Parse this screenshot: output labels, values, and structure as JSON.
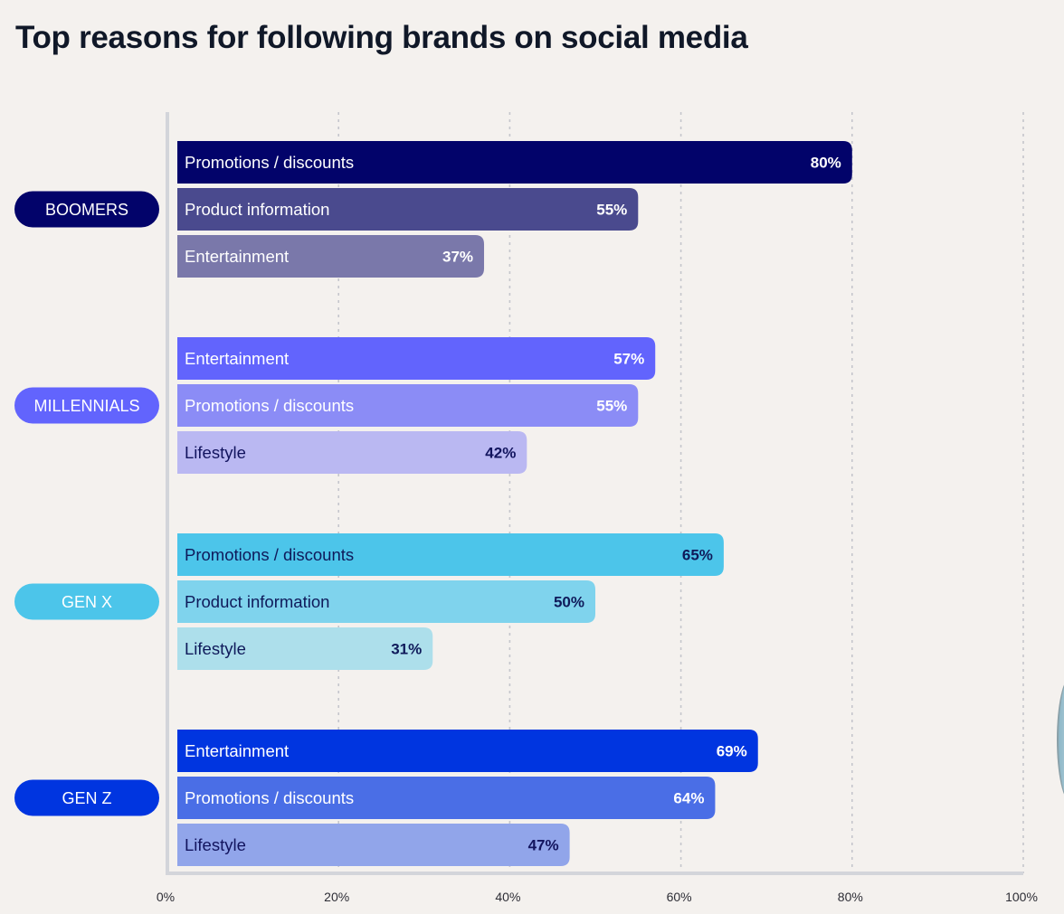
{
  "chart_data": {
    "type": "bar",
    "orientation": "horizontal",
    "title": "Top reasons for following brands on social media",
    "xlabel": "",
    "ylabel": "",
    "xlim": [
      0,
      100
    ],
    "x_ticks": [
      "0%",
      "20%",
      "40%",
      "60%",
      "80%",
      "100%"
    ],
    "grid": true,
    "value_suffix": "%",
    "groups": [
      {
        "name": "BOOMERS",
        "color": "#02036a",
        "bars": [
          {
            "label": "Promotions / discounts",
            "value": 80,
            "color": "#02036a",
            "text_color": "#ffffff"
          },
          {
            "label": "Product information",
            "value": 55,
            "color": "#4a4a8e",
            "text_color": "#ffffff"
          },
          {
            "label": "Entertainment",
            "value": 37,
            "color": "#7a78aa",
            "text_color": "#ffffff"
          }
        ]
      },
      {
        "name": "MILLENNIALS",
        "color": "#6264fd",
        "bars": [
          {
            "label": "Entertainment",
            "value": 57,
            "color": "#6264fd",
            "text_color": "#ffffff"
          },
          {
            "label": "Promotions / discounts",
            "value": 55,
            "color": "#8b8cf6",
            "text_color": "#ffffff"
          },
          {
            "label": "Lifestyle",
            "value": 42,
            "color": "#bab8f2",
            "text_color": "#12145e"
          }
        ]
      },
      {
        "name": "GEN X",
        "color": "#4cc5ea",
        "bars": [
          {
            "label": "Promotions / discounts",
            "value": 65,
            "color": "#4cc5ea",
            "text_color": "#0f1a5a"
          },
          {
            "label": "Product information",
            "value": 50,
            "color": "#7fd3ed",
            "text_color": "#0f1a5a"
          },
          {
            "label": "Lifestyle",
            "value": 31,
            "color": "#addfeb",
            "text_color": "#0f1a5a"
          }
        ]
      },
      {
        "name": "GEN Z",
        "color": "#0035e0",
        "bars": [
          {
            "label": "Entertainment",
            "value": 69,
            "color": "#0035e0",
            "text_color": "#ffffff"
          },
          {
            "label": "Promotions / discounts",
            "value": 64,
            "color": "#4a6ee6",
            "text_color": "#ffffff"
          },
          {
            "label": "Lifestyle",
            "value": 47,
            "color": "#91a5ea",
            "text_color": "#12145e"
          }
        ]
      }
    ]
  }
}
